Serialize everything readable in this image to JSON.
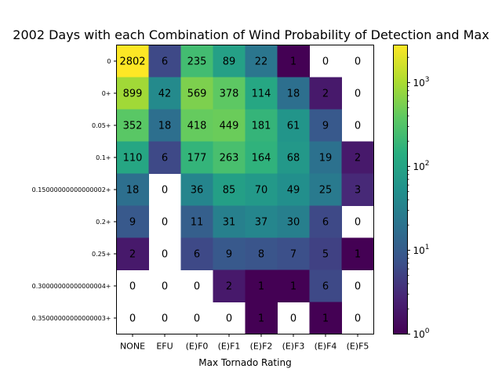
{
  "chart_data": {
    "type": "heatmap",
    "title": "2002 Days with each Combination of Wind Probability of Detection and Max",
    "xlabel": "Max Tornado Rating",
    "ylabel": "",
    "x_categories": [
      "NONE",
      "EFU",
      "(E)F0",
      "(E)F1",
      "(E)F2",
      "(E)F3",
      "(E)F4",
      "(E)F5"
    ],
    "y_categories": [
      "0",
      "0+",
      "0.05+",
      "0.1+",
      "0.15000000000000002+",
      "0.2+",
      "0.25+",
      "0.30000000000000004+",
      "0.35000000000000003+"
    ],
    "values": [
      [
        2802,
        6,
        235,
        89,
        22,
        1,
        0,
        0
      ],
      [
        899,
        42,
        569,
        378,
        114,
        18,
        2,
        0
      ],
      [
        352,
        18,
        418,
        449,
        181,
        61,
        9,
        0
      ],
      [
        110,
        6,
        177,
        263,
        164,
        68,
        19,
        2
      ],
      [
        18,
        0,
        36,
        85,
        70,
        49,
        25,
        3
      ],
      [
        9,
        0,
        11,
        31,
        37,
        30,
        6,
        0
      ],
      [
        2,
        0,
        6,
        9,
        8,
        7,
        5,
        1
      ],
      [
        0,
        0,
        0,
        2,
        1,
        1,
        6,
        0
      ],
      [
        0,
        0,
        0,
        0,
        1,
        0,
        1,
        0
      ]
    ],
    "colormap": "viridis",
    "color_scale": "log",
    "color_range": [
      1,
      2802
    ],
    "zero_cells": "blank",
    "colorbar": {
      "ticks": [
        {
          "value": 1,
          "base": "10",
          "exp": "0"
        },
        {
          "value": 10,
          "base": "10",
          "exp": "1"
        },
        {
          "value": 100,
          "base": "10",
          "exp": "2"
        },
        {
          "value": 1000,
          "base": "10",
          "exp": "3"
        }
      ]
    }
  }
}
